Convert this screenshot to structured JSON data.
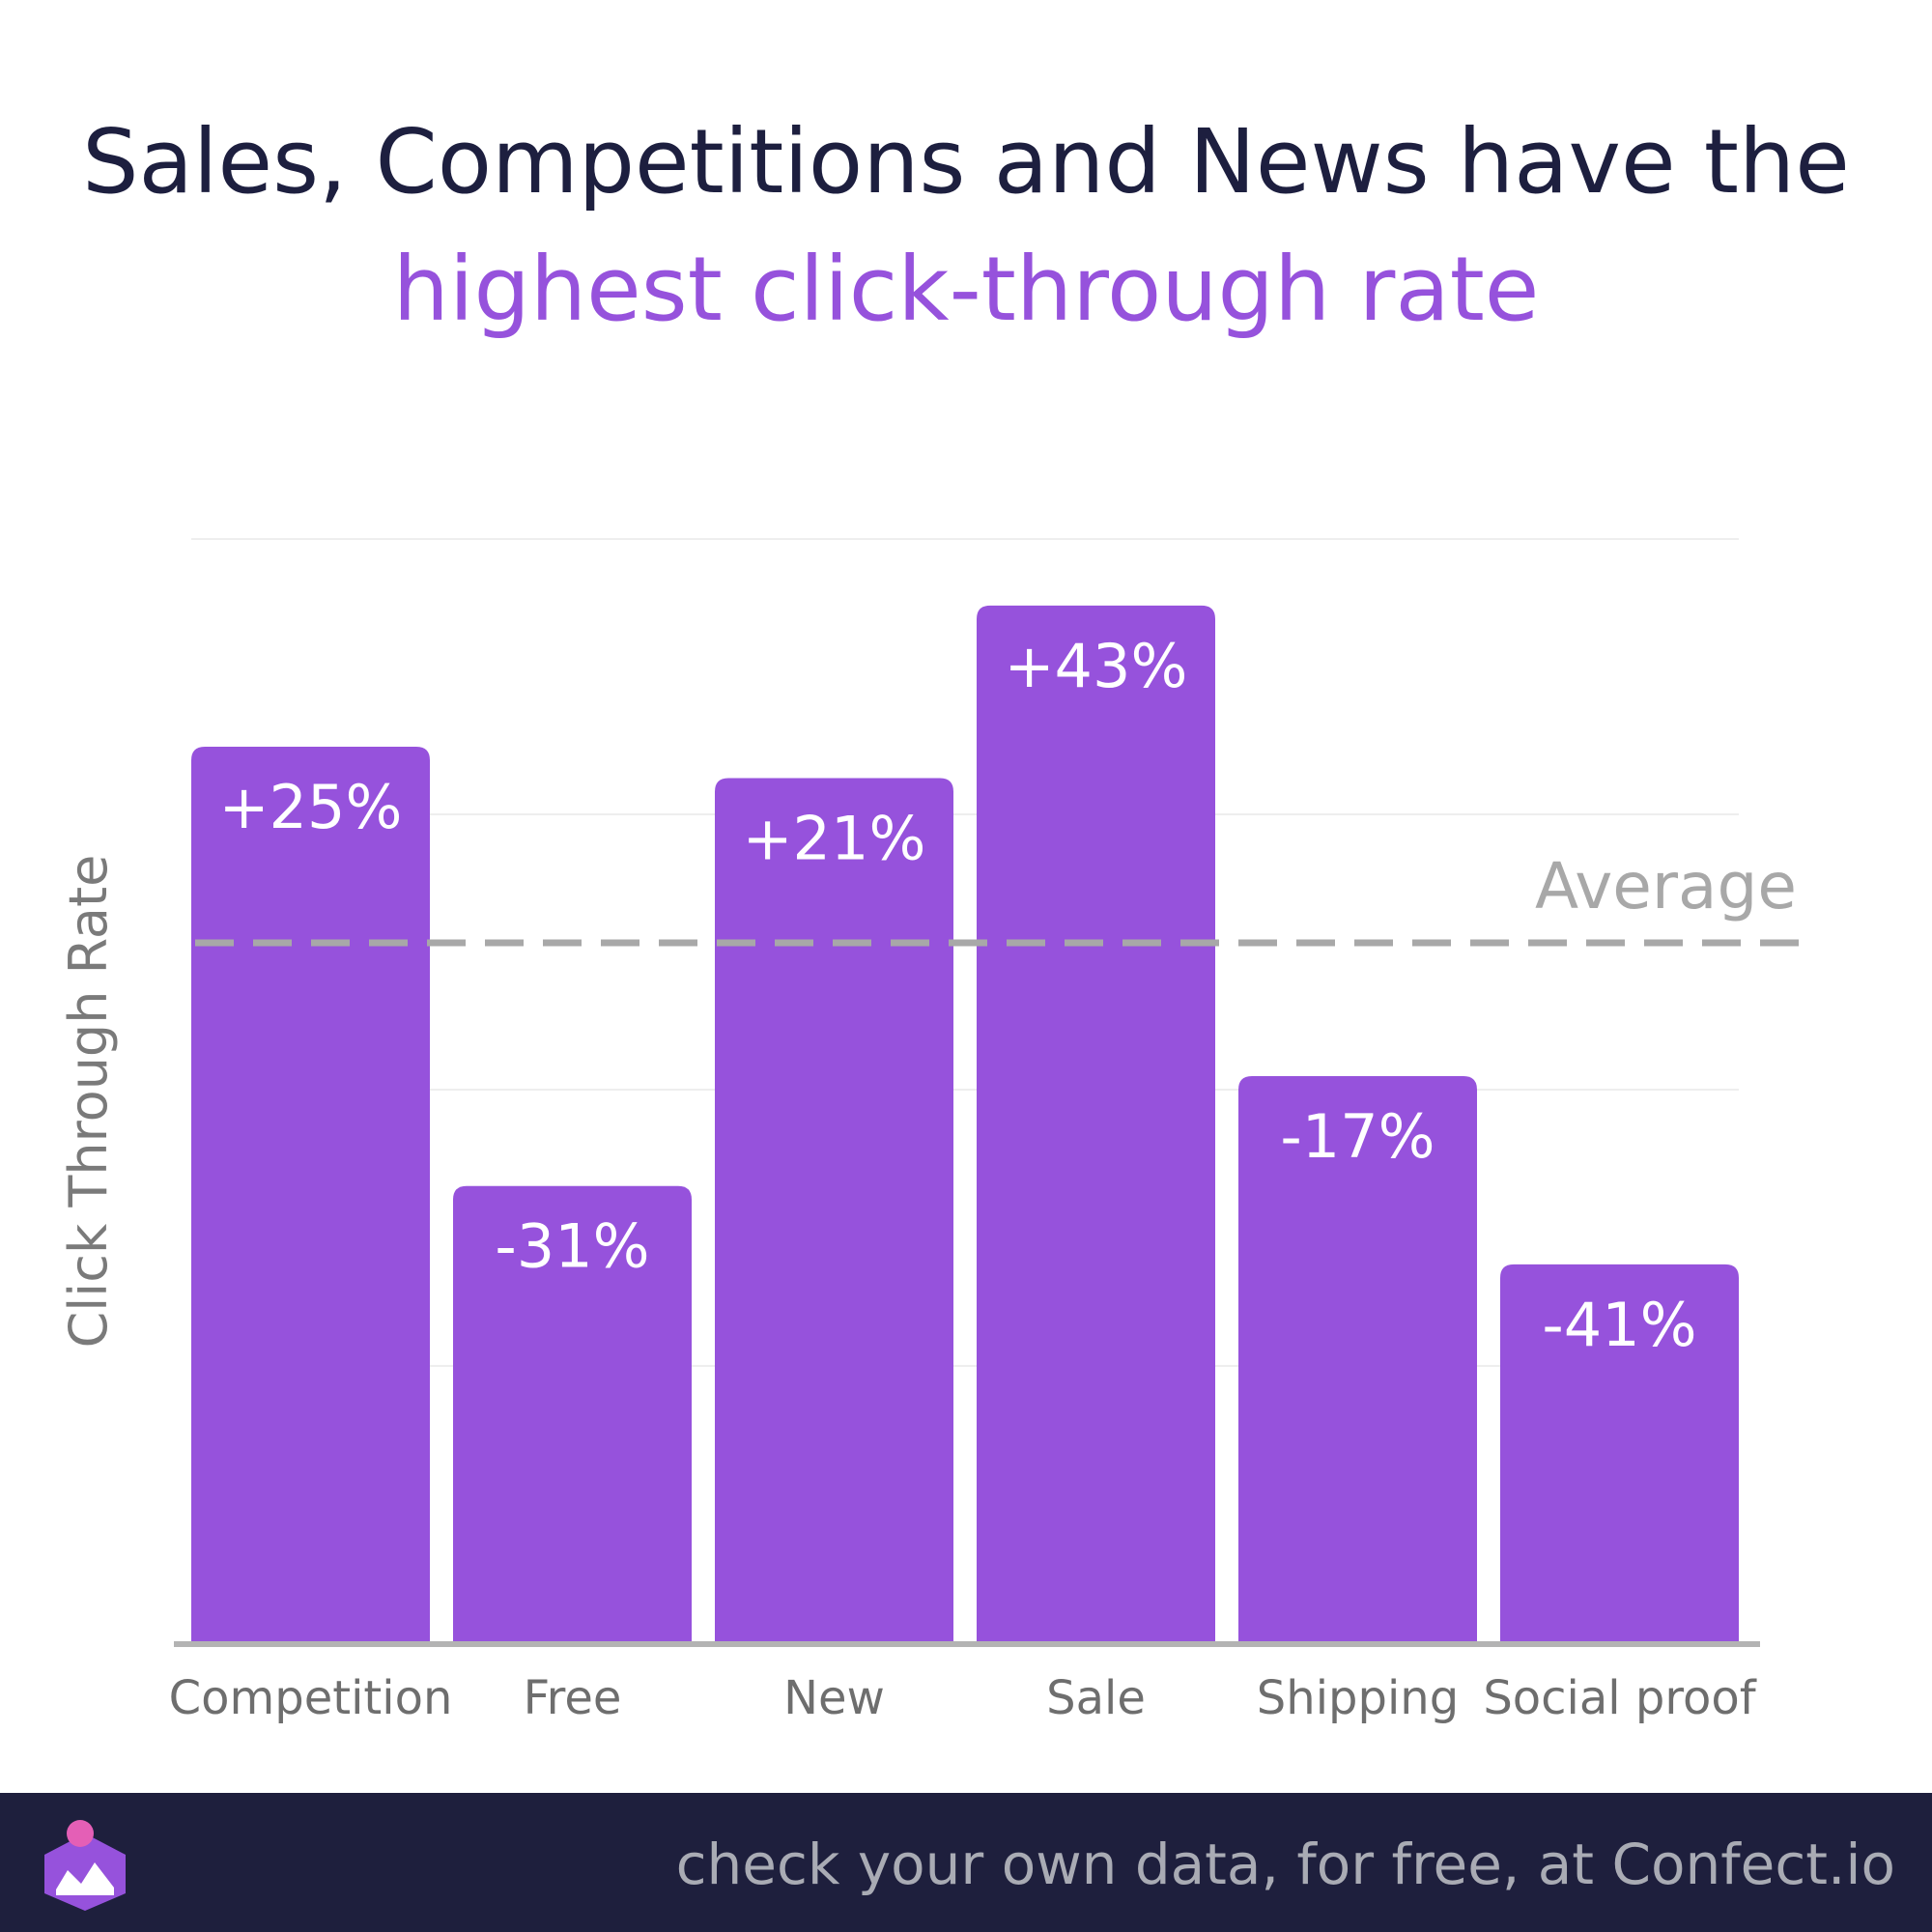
{
  "header": {
    "title_line1": "Sales, Competitions and News have the",
    "title_line2": "highest click-through rate"
  },
  "colors": {
    "bar": "#9652dc",
    "title_dark": "#1d1f3f",
    "title_accent": "#9652dc",
    "average_line": "#a8a8a8",
    "footer_bg": "#1e1f3d"
  },
  "chart_data": {
    "type": "bar",
    "title": "Sales, Competitions and News have the highest click-through rate",
    "xlabel": "",
    "ylabel": "Click Through Rate",
    "categories": [
      "Competition",
      "Free",
      "New",
      "Sale",
      "Shipping",
      "Social proof"
    ],
    "values": [
      25,
      -31,
      21,
      43,
      -17,
      -41
    ],
    "value_labels": [
      "+25%",
      "-31%",
      "+21%",
      "+43%",
      "-17%",
      "-41%"
    ],
    "value_unit": "% vs average",
    "reference_line": {
      "label": "Average",
      "value": 0,
      "style": "dashed"
    },
    "grid": true,
    "legend": "none"
  },
  "footer": {
    "text": "check your own data, for free, at Confect.io",
    "logo_icon": "confect-logo-icon"
  }
}
